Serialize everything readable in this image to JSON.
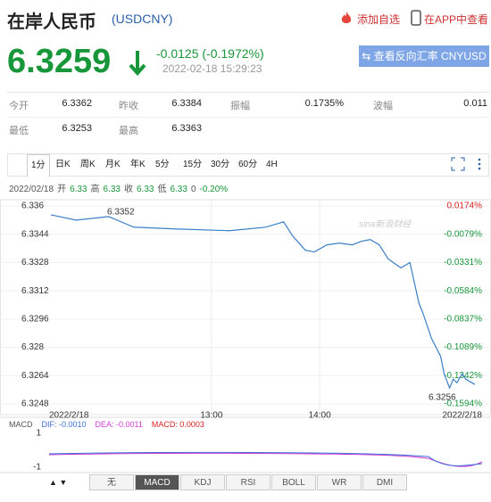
{
  "header": {
    "title": "在岸人民币",
    "code": "(USDCNY)",
    "add_watch": "添加自选",
    "view_app": "在APP中查看"
  },
  "quote": {
    "price": "6.3259",
    "change": "-0.0125 (-0.1972%)",
    "time": "2022-02-18 15:29:23",
    "reverse_button": "⇆ 查看反向汇率 CNYUSD"
  },
  "stats": {
    "rows": [
      [
        "今开",
        "6.3362",
        "昨收",
        "6.3384",
        "振幅",
        "0.1735%",
        "波幅",
        "0.011"
      ],
      [
        "最低",
        "6.3253",
        "最高",
        "6.3363"
      ]
    ]
  },
  "tabs": [
    "1分",
    "日K",
    "周K",
    "月K",
    "年K",
    "5分",
    "15分",
    "30分",
    "60分",
    "4H"
  ],
  "info": {
    "date": "2022/02/18",
    "items": [
      [
        "开",
        "6.33"
      ],
      [
        "高",
        "6.33"
      ],
      [
        "收",
        "6.33"
      ],
      [
        "低",
        "6.33"
      ]
    ],
    "volume": "0",
    "change": "-0.20%"
  },
  "chart_data": {
    "type": "line",
    "color": "#3a7fc8",
    "x": [
      "11:31",
      "11:45",
      "12:03",
      "12:17",
      "12:40",
      "13:10",
      "13:30",
      "13:40",
      "13:45",
      "13:52",
      "13:57",
      "14:04",
      "14:11",
      "14:18",
      "14:23",
      "14:28",
      "14:33",
      "14:38",
      "14:45",
      "14:50",
      "14:55",
      "14:57",
      "15:02",
      "15:07",
      "15:09",
      "15:12",
      "15:14",
      "15:16",
      "15:19",
      "15:21",
      "15:26"
    ],
    "values": [
      6.3355,
      6.3352,
      6.3354,
      6.3348,
      6.3347,
      6.3346,
      6.3348,
      6.3351,
      6.3343,
      6.3335,
      6.3334,
      6.3338,
      6.3339,
      6.3338,
      6.334,
      6.3341,
      6.3338,
      6.333,
      6.3325,
      6.3328,
      6.3305,
      6.33,
      6.3285,
      6.3275,
      6.3265,
      6.3257,
      6.3262,
      6.326,
      6.3265,
      6.3262,
      6.3259
    ],
    "xlim": [
      "11:30",
      "15:30"
    ],
    "xticks": [
      {
        "value": "11:30",
        "label": "2022/2/18"
      },
      "13:00",
      "14:00",
      {
        "value": "15:30",
        "label": "2022/2/18"
      }
    ],
    "ylim": [
      6.3248,
      6.336
    ],
    "yticks": [
      6.336,
      6.3344,
      6.3328,
      6.3312,
      6.3296,
      6.328,
      6.3264,
      6.3248
    ],
    "y2lim": [
      -0.1594,
      0.0174
    ],
    "y2ticks": [
      {
        "value": 0.0174,
        "label": "0.0174%"
      },
      {
        "value": -0.0079,
        "label": "-0.0079%"
      },
      {
        "value": -0.0331,
        "label": "-0.0331%"
      },
      {
        "value": -0.0584,
        "label": "-0.0584%"
      },
      {
        "value": -0.0837,
        "label": "-0.0837%"
      },
      {
        "value": -0.1089,
        "label": "-0.1089%"
      },
      {
        "value": -0.1342,
        "label": "-0.1342%"
      },
      {
        "value": -0.1594,
        "label": "-0.1594%"
      }
    ],
    "annotations": [
      "6.3352",
      "6.3256"
    ],
    "grid": true
  },
  "macd": {
    "legend": [
      "MACD",
      "DIF: -0.0010",
      "DEA: -0.0011",
      "MACD: 0.0003"
    ],
    "yticks": [
      "1",
      "-1"
    ],
    "tabs": [
      "无",
      "MACD",
      "KDJ",
      "RSI",
      "BOLL",
      "WR",
      "DMI"
    ]
  }
}
